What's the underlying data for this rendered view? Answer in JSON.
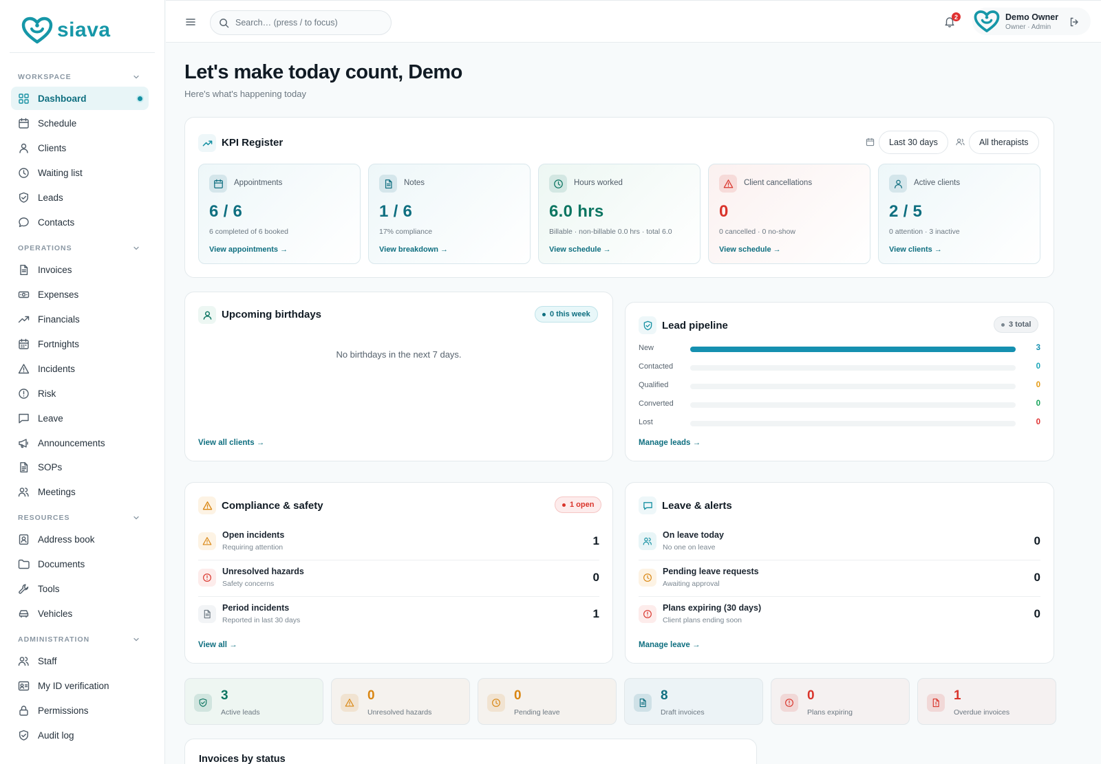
{
  "brand": {
    "name": "siava",
    "color": "#1697a8"
  },
  "sidebar": {
    "sections": [
      {
        "title": "WORKSPACE",
        "items": [
          {
            "label": "Dashboard",
            "icon": "dashboard-icon",
            "active": true
          },
          {
            "label": "Schedule",
            "icon": "calendar-icon"
          },
          {
            "label": "Clients",
            "icon": "user-icon"
          },
          {
            "label": "Waiting list",
            "icon": "clock-icon"
          },
          {
            "label": "Leads",
            "icon": "shield-check-icon"
          },
          {
            "label": "Contacts",
            "icon": "chat-bubble-icon"
          }
        ]
      },
      {
        "title": "OPERATIONS",
        "items": [
          {
            "label": "Invoices",
            "icon": "file-text-icon"
          },
          {
            "label": "Expenses",
            "icon": "banknote-icon"
          },
          {
            "label": "Financials",
            "icon": "trending-up-icon"
          },
          {
            "label": "Fortnights",
            "icon": "calendar-grid-icon"
          },
          {
            "label": "Incidents",
            "icon": "warning-triangle-icon"
          },
          {
            "label": "Risk",
            "icon": "alert-circle-icon"
          },
          {
            "label": "Leave",
            "icon": "message-square-icon"
          },
          {
            "label": "Announcements",
            "icon": "megaphone-icon"
          },
          {
            "label": "SOPs",
            "icon": "file-list-icon"
          },
          {
            "label": "Meetings",
            "icon": "users-icon"
          }
        ]
      },
      {
        "title": "RESOURCES",
        "items": [
          {
            "label": "Address book",
            "icon": "contact-book-icon"
          },
          {
            "label": "Documents",
            "icon": "folder-icon"
          },
          {
            "label": "Tools",
            "icon": "wrench-icon"
          },
          {
            "label": "Vehicles",
            "icon": "car-icon"
          }
        ]
      },
      {
        "title": "ADMINISTRATION",
        "items": [
          {
            "label": "Staff",
            "icon": "users-icon"
          },
          {
            "label": "My ID verification",
            "icon": "id-card-icon"
          },
          {
            "label": "Permissions",
            "icon": "lock-icon"
          },
          {
            "label": "Audit log",
            "icon": "shield-check-icon"
          }
        ]
      }
    ]
  },
  "header": {
    "search_placeholder": "Search… (press / to focus)",
    "notifications_count": "2",
    "user_name": "Demo Owner",
    "user_role": "Owner · Admin"
  },
  "page": {
    "title": "Let's make today count, Demo",
    "subtitle": "Here's what's happening today"
  },
  "kpi": {
    "title": "KPI Register",
    "range_label": "Last 30 days",
    "therapist_label": "All therapists",
    "cards": [
      {
        "label": "Appointments",
        "value": "6 / 6",
        "sub": "6 completed of 6 booked",
        "link": "View appointments →",
        "icon": "calendar-icon",
        "accent": "#0f6f80",
        "bg": "#eef7f9"
      },
      {
        "label": "Notes",
        "value": "1 / 6",
        "sub": "17% compliance",
        "link": "View breakdown →",
        "icon": "file-text-icon",
        "accent": "#0f6f80",
        "bg": "#eef7f9"
      },
      {
        "label": "Hours worked",
        "value": "6.0 hrs",
        "sub": "Billable · non-billable 0.0 hrs · total 6.0",
        "link": "View schedule →",
        "icon": "clock-icon",
        "accent": "#0c7561",
        "bg": "#edf7f3"
      },
      {
        "label": "Client cancellations",
        "value": "0",
        "sub": "0 cancelled · 0 no-show",
        "link": "View schedule →",
        "icon": "warning-triangle-icon",
        "accent": "#d9342b",
        "bg": "#fbf1f0"
      },
      {
        "label": "Active clients",
        "value": "2 / 5",
        "sub": "0 attention · 3 inactive",
        "link": "View clients →",
        "icon": "user-icon",
        "accent": "#0f6f80",
        "bg": "#eef7f9"
      }
    ]
  },
  "birthdays": {
    "title": "Upcoming birthdays",
    "badge": "0 this week",
    "empty": "No birthdays in the next 7 days.",
    "link": "View all clients →"
  },
  "pipeline": {
    "title": "Lead pipeline",
    "badge": "3 total",
    "link": "Manage leads →",
    "stages": [
      {
        "label": "New",
        "count": "3",
        "fraction": 1.0,
        "color": "#1590b0"
      },
      {
        "label": "Contacted",
        "count": "0",
        "fraction": 0,
        "color": "#1aa5b8"
      },
      {
        "label": "Qualified",
        "count": "0",
        "fraction": 0,
        "color": "#e49a12"
      },
      {
        "label": "Converted",
        "count": "0",
        "fraction": 0,
        "color": "#17a35a"
      },
      {
        "label": "Lost",
        "count": "0",
        "fraction": 0,
        "color": "#e03131"
      }
    ]
  },
  "compliance": {
    "title": "Compliance & safety",
    "badge": "1 open",
    "link": "View all →",
    "rows": [
      {
        "title": "Open incidents",
        "sub": "Requiring attention",
        "value": "1",
        "icon": "warning-triangle-icon"
      },
      {
        "title": "Unresolved hazards",
        "sub": "Safety concerns",
        "value": "0",
        "icon": "alert-circle-icon"
      },
      {
        "title": "Period incidents",
        "sub": "Reported in last 30 days",
        "value": "1",
        "icon": "file-text-icon"
      }
    ]
  },
  "leave": {
    "title": "Leave & alerts",
    "link": "Manage leave →",
    "rows": [
      {
        "title": "On leave today",
        "sub": "No one on leave",
        "value": "0",
        "icon": "users-icon"
      },
      {
        "title": "Pending leave requests",
        "sub": "Awaiting approval",
        "value": "0",
        "icon": "clock-icon"
      },
      {
        "title": "Plans expiring (30 days)",
        "sub": "Client plans ending soon",
        "value": "0",
        "icon": "alert-circle-icon"
      }
    ]
  },
  "stats": [
    {
      "value": "3",
      "label": "Active leads",
      "icon": "shield-check-icon",
      "color": "#0c7561",
      "bg": "#eef6f2"
    },
    {
      "value": "0",
      "label": "Unresolved hazards",
      "icon": "warning-triangle-icon",
      "color": "#d98612",
      "bg": "#f5f2ee"
    },
    {
      "value": "0",
      "label": "Pending leave",
      "icon": "clock-icon",
      "color": "#d98612",
      "bg": "#f5f2ee"
    },
    {
      "value": "8",
      "label": "Draft invoices",
      "icon": "file-text-icon",
      "color": "#0f6f80",
      "bg": "#ecf3f6"
    },
    {
      "value": "0",
      "label": "Plans expiring",
      "icon": "alert-circle-icon",
      "color": "#d9342b",
      "bg": "#f5f1f1"
    },
    {
      "value": "1",
      "label": "Overdue invoices",
      "icon": "file-alert-icon",
      "color": "#d9342b",
      "bg": "#f5f1f1"
    }
  ],
  "invoices": {
    "title": "Invoices by status"
  }
}
